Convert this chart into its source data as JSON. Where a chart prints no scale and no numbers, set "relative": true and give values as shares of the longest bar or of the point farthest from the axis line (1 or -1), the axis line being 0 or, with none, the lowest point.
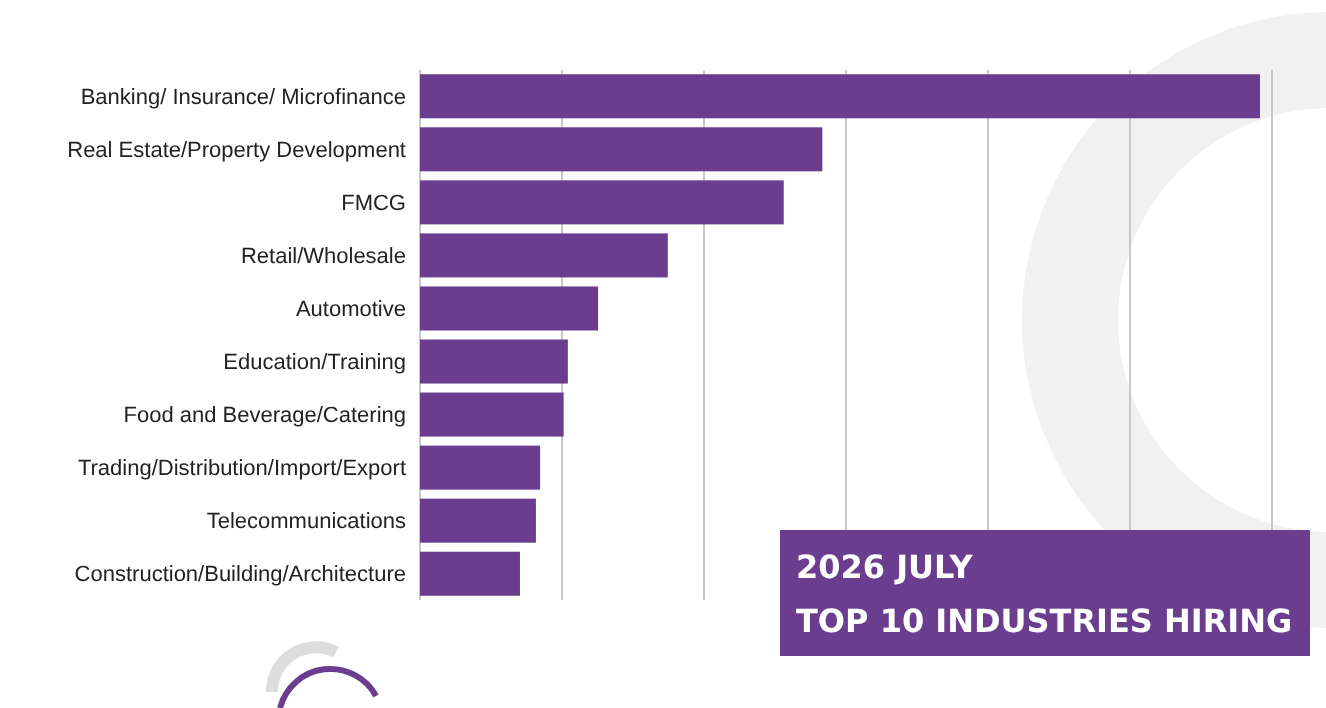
{
  "chart_data": {
    "type": "bar",
    "orientation": "horizontal",
    "relative": true,
    "title": "2026 JULY",
    "subtitle": "TOP 10 INDUSTRIES HIRING",
    "categories": [
      "Banking/ Insurance/ Microfinance",
      "Real Estate/Property Development",
      "FMCG",
      "Retail/Wholesale",
      "Automotive",
      "Education/Training",
      "Food and Beverage/Catering",
      "Trading/Distribution/Import/Export",
      "Telecommunications",
      "Construction/Building/Architecture"
    ],
    "values": [
      1,
      0.479,
      0.433,
      0.295,
      0.212,
      0.176,
      0.171,
      0.143,
      0.138,
      0.119
    ],
    "color": "#6a3d8f",
    "grid": "x"
  }
}
